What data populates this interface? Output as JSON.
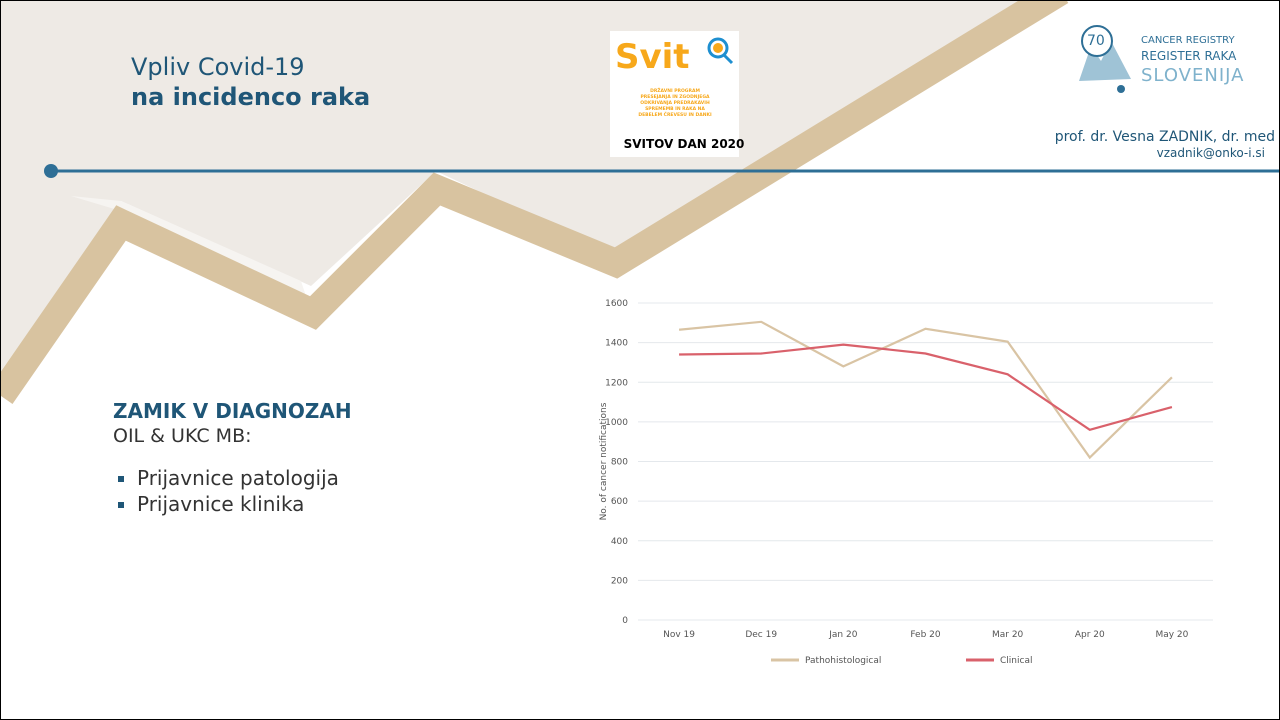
{
  "header": {
    "title_line1": "Vpliv Covid-19",
    "title_line2": "na incidenco raka",
    "svit": {
      "name": "Svit",
      "tagline": [
        "DRŽAVNI PROGRAM",
        "PRESEJANJA IN ZGODNJEGA",
        "ODKRIVANJA PREDRAKAVIH",
        "SPREMEMB IN RAKA NA",
        "DEBELEM ČREVESU IN DANKI"
      ],
      "event": "SVITOV DAN 2020"
    },
    "registry": {
      "badge": "70",
      "line1": "CANCER REGISTRY",
      "line2": "REGISTER RAKA",
      "line3": "SLOVENIJA"
    },
    "author": "prof. dr. Vesna ZADNIK, dr. med",
    "email": "vzadnik@onko-i.si"
  },
  "body": {
    "heading": "ZAMIK V DIAGNOZAH",
    "subheading": "OIL & UKC MB:",
    "bullets": [
      "Prijavnice patologija",
      "Prijavnice klinika"
    ]
  },
  "chart_data": {
    "type": "line",
    "ylabel": "No. of cancer notifications",
    "categories": [
      "Nov 19",
      "Dec 19",
      "Jan 20",
      "Feb 20",
      "Mar 20",
      "Apr 20",
      "May 20"
    ],
    "series": [
      {
        "name": "Pathohistological",
        "color": "#d9c4a4",
        "values": [
          1465,
          1505,
          1280,
          1470,
          1405,
          820,
          1225
        ]
      },
      {
        "name": "Clinical",
        "color": "#d9616b",
        "values": [
          1340,
          1345,
          1390,
          1345,
          1240,
          960,
          1075
        ]
      }
    ],
    "ylim": [
      0,
      1600
    ],
    "yticks": [
      0,
      200,
      400,
      600,
      800,
      1000,
      1200,
      1400,
      1600
    ],
    "grid": true,
    "legend": "bottom"
  }
}
